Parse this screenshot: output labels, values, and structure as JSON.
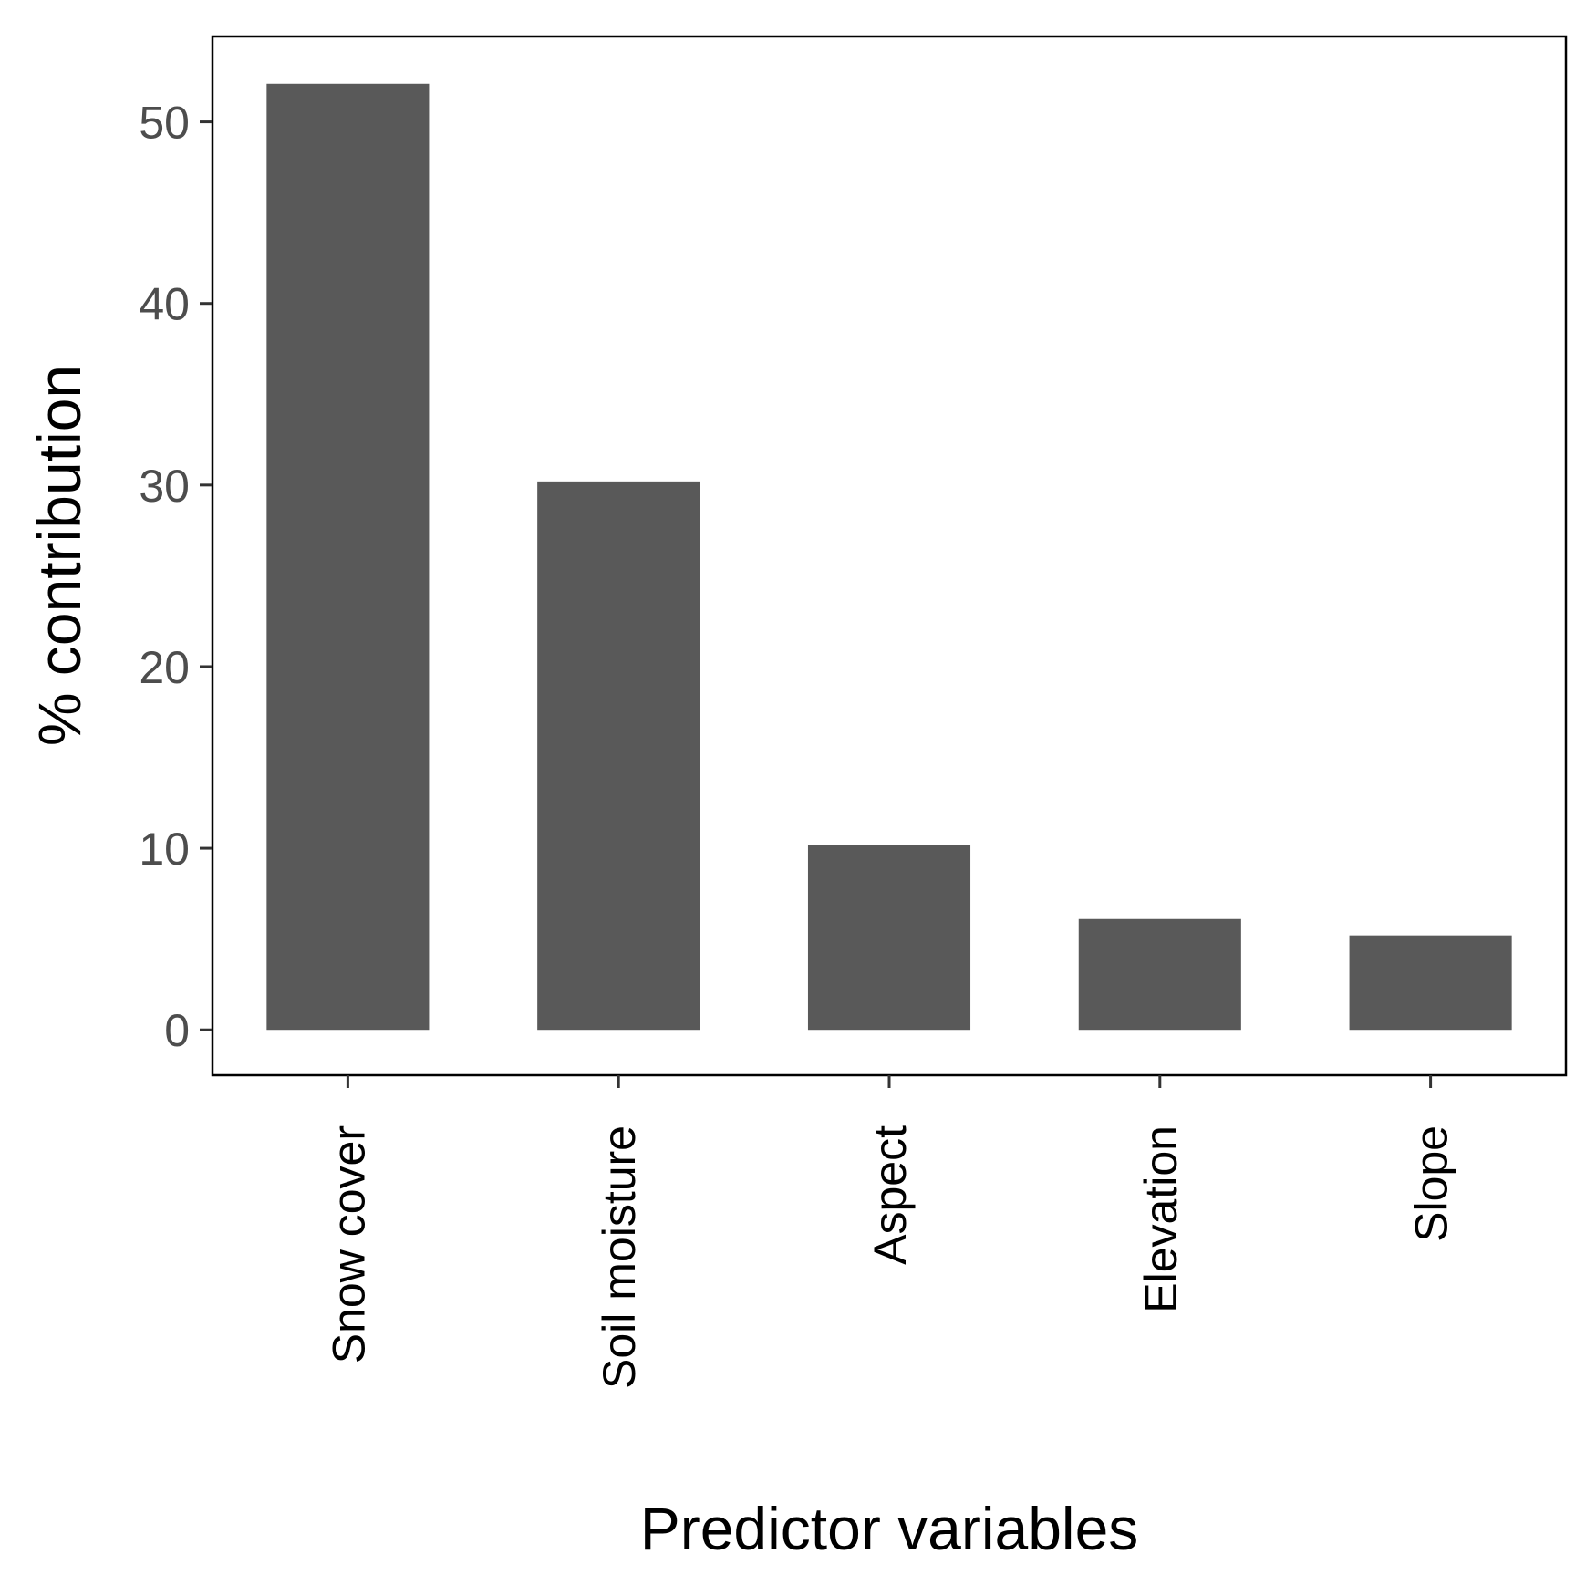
{
  "chart_data": {
    "type": "bar",
    "categories": [
      "Snow cover",
      "Soil moisture",
      "Aspect",
      "Elevation",
      "Slope"
    ],
    "values": [
      52.1,
      30.2,
      10.2,
      6.1,
      5.2
    ],
    "title": "",
    "xlabel": "Predictor variables",
    "ylabel": "% contribution",
    "ylim": [
      -2.5,
      54.7
    ],
    "yticks": [
      0,
      10,
      20,
      30,
      40,
      50
    ],
    "grid": false,
    "legend": "none",
    "bar_color": "#595959",
    "axis_color": "#333333"
  }
}
